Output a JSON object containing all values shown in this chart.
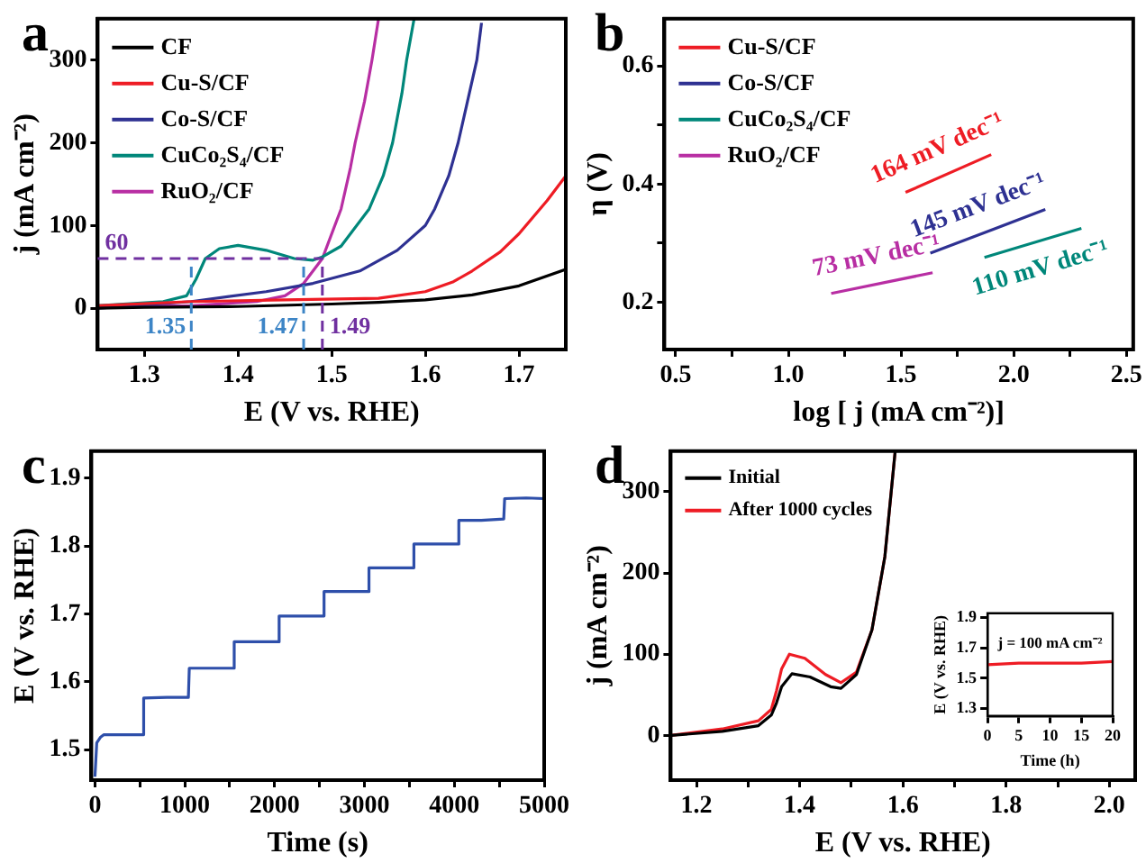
{
  "chart_data": [
    {
      "type": "line",
      "title": "a",
      "xlabel": "E (V vs. RHE)",
      "ylabel": "j (mA cm⁻²)",
      "xlim": [
        1.25,
        1.75
      ],
      "ylim": [
        -50,
        350
      ],
      "xticks": [
        1.3,
        1.4,
        1.5,
        1.6,
        1.7
      ],
      "yticks": [
        0,
        100,
        200,
        300
      ],
      "legend": "top left",
      "marker": "none",
      "line_style": "solid",
      "series": [
        {
          "name": "CF",
          "color": "#000000",
          "x": [
            1.25,
            1.3,
            1.4,
            1.5,
            1.55,
            1.6,
            1.65,
            1.7,
            1.75
          ],
          "values": [
            0,
            1,
            2,
            5,
            7,
            10,
            16,
            27,
            47
          ]
        },
        {
          "name": "Cu-S/CF",
          "color": "#ee1c24",
          "x": [
            1.25,
            1.35,
            1.45,
            1.55,
            1.6,
            1.63,
            1.65,
            1.68,
            1.7,
            1.73,
            1.75
          ],
          "values": [
            3,
            8,
            10,
            12,
            20,
            32,
            45,
            68,
            90,
            130,
            160
          ]
        },
        {
          "name": "Co-S/CF",
          "color": "#2e3192",
          "x": [
            1.25,
            1.3,
            1.35,
            1.43,
            1.48,
            1.53,
            1.57,
            1.6,
            1.61,
            1.625,
            1.635,
            1.645,
            1.655,
            1.66
          ],
          "values": [
            0,
            4,
            8,
            20,
            30,
            45,
            70,
            100,
            120,
            160,
            200,
            250,
            300,
            345
          ]
        },
        {
          "name": "CuCo₂S₄/CF",
          "color": "#00877a",
          "x": [
            1.25,
            1.32,
            1.345,
            1.355,
            1.365,
            1.38,
            1.4,
            1.43,
            1.46,
            1.48,
            1.49,
            1.51,
            1.54,
            1.555,
            1.565,
            1.575,
            1.58,
            1.588
          ],
          "values": [
            3,
            8,
            15,
            35,
            60,
            72,
            76,
            70,
            60,
            58,
            62,
            75,
            120,
            160,
            200,
            260,
            300,
            350
          ]
        },
        {
          "name": "RuO₂/CF",
          "color": "#b82ea3",
          "x": [
            1.25,
            1.35,
            1.42,
            1.45,
            1.47,
            1.49,
            1.51,
            1.52,
            1.525,
            1.535,
            1.543,
            1.55
          ],
          "values": [
            2,
            3,
            8,
            15,
            30,
            60,
            120,
            170,
            200,
            250,
            300,
            350
          ]
        }
      ],
      "ref_lines": [
        {
          "axis": "y",
          "value": 60,
          "label": "60",
          "color": "#7030a0",
          "line_style": "dashed"
        },
        {
          "axis": "x",
          "value": 1.35,
          "label": "1.35",
          "color": "#3d85c6",
          "line_style": "dashed"
        },
        {
          "axis": "x",
          "value": 1.47,
          "label": "1.47",
          "color": "#3d85c6",
          "line_style": "dashed"
        },
        {
          "axis": "x",
          "value": 1.49,
          "label": "1.49",
          "color": "#7030a0",
          "line_style": "dashed"
        }
      ]
    },
    {
      "type": "line",
      "title": "b",
      "xlabel": "log [ j (mA cm⁻²)]",
      "ylabel": "η (V)",
      "xlim": [
        0.45,
        2.53
      ],
      "ylim": [
        0.12,
        0.68
      ],
      "xticks": [
        0.5,
        {
          "value": 0.75,
          "label": null
        },
        {
          "value": 1,
          "label": "1.0"
        },
        {
          "value": 1.25,
          "label": null
        },
        1.5,
        {
          "value": 1.75,
          "label": null
        },
        {
          "value": 2,
          "label": "2.0"
        },
        {
          "value": 2.25,
          "label": null
        },
        2.5
      ],
      "yticks": [
        0.2,
        {
          "value": 0.3,
          "label": null
        },
        0.4,
        {
          "value": 0.5,
          "label": null
        },
        0.6
      ],
      "legend": "top left",
      "marker": "none",
      "line_style": "solid",
      "series": [
        {
          "name": "Cu-S/CF",
          "color": "#ee1c24",
          "x": [
            1.52,
            1.9
          ],
          "values": [
            0.386,
            0.45
          ]
        },
        {
          "name": "Co-S/CF",
          "color": "#2e3192",
          "x": [
            1.63,
            2.14
          ],
          "values": [
            0.283,
            0.357
          ]
        },
        {
          "name": "CuCo₂S₄/CF",
          "color": "#00877a",
          "x": [
            1.87,
            2.3
          ],
          "values": [
            0.276,
            0.325
          ]
        },
        {
          "name": "RuO₂/CF",
          "color": "#b82ea3",
          "x": [
            1.19,
            1.64
          ],
          "values": [
            0.215,
            0.25
          ]
        }
      ],
      "annotations": [
        "164 mV dec⁻¹",
        "145 mV dec⁻¹",
        "110 mV dec⁻¹",
        "73 mV dec⁻¹"
      ]
    },
    {
      "type": "line",
      "title": "c",
      "xlabel": "Time (s)",
      "ylabel": "E (V vs. RHE)",
      "xlim": [
        -40,
        5000
      ],
      "ylim": [
        1.455,
        1.94
      ],
      "xticks": [
        0,
        {
          "value": 500,
          "label": null
        },
        1000,
        {
          "value": 1500,
          "label": null
        },
        2000,
        {
          "value": 2500,
          "label": null
        },
        3000,
        {
          "value": 3500,
          "label": null
        },
        4000,
        {
          "value": 4500,
          "label": null
        },
        5000
      ],
      "yticks": [
        1.5,
        1.6,
        1.7,
        1.8,
        1.9
      ],
      "marker": "none",
      "line_style": "solid",
      "series": [
        {
          "color": "#2e4faa",
          "x": [
            0,
            20,
            60,
            100,
            300,
            530,
            540,
            545,
            800,
            1040,
            1050,
            1300,
            1540,
            1550,
            1800,
            2040,
            2050,
            2300,
            2540,
            2550,
            2800,
            3040,
            3050,
            3300,
            3540,
            3550,
            3800,
            4040,
            4050,
            4300,
            4550,
            4560,
            4800,
            5000
          ],
          "values": [
            1.46,
            1.51,
            1.518,
            1.522,
            1.522,
            1.522,
            1.576,
            1.576,
            1.577,
            1.577,
            1.62,
            1.62,
            1.62,
            1.659,
            1.659,
            1.659,
            1.697,
            1.697,
            1.697,
            1.733,
            1.733,
            1.733,
            1.768,
            1.768,
            1.768,
            1.803,
            1.803,
            1.803,
            1.838,
            1.838,
            1.84,
            1.87,
            1.871,
            1.87
          ]
        }
      ]
    },
    {
      "type": "line",
      "title": "d",
      "xlabel": "E (V vs. RHE)",
      "ylabel": "j (mA cm⁻²)",
      "xlim": [
        1.15,
        2.05
      ],
      "ylim": [
        -55,
        350
      ],
      "xticks": [
        1.2,
        {
          "value": 1.3,
          "label": null
        },
        1.4,
        {
          "value": 1.5,
          "label": null
        },
        1.6,
        {
          "value": 1.7,
          "label": null
        },
        1.8,
        {
          "value": 1.9,
          "label": null
        },
        {
          "value": 2,
          "label": "2.0"
        }
      ],
      "yticks": [
        0,
        100,
        200,
        300
      ],
      "legend": "top left",
      "marker": "none",
      "line_style": "solid",
      "series": [
        {
          "name": "Initial",
          "color": "#000000",
          "x": [
            1.15,
            1.25,
            1.32,
            1.345,
            1.355,
            1.365,
            1.385,
            1.42,
            1.46,
            1.48,
            1.51,
            1.54,
            1.565,
            1.585
          ],
          "values": [
            0,
            5,
            12,
            25,
            40,
            60,
            76,
            72,
            60,
            58,
            75,
            130,
            220,
            350
          ]
        },
        {
          "name": "After 1000 cycles",
          "color": "#ee1c24",
          "x": [
            1.15,
            1.25,
            1.32,
            1.345,
            1.355,
            1.365,
            1.38,
            1.41,
            1.45,
            1.48,
            1.51,
            1.54,
            1.565,
            1.585
          ],
          "values": [
            0,
            8,
            18,
            32,
            55,
            82,
            100,
            95,
            75,
            65,
            78,
            130,
            220,
            350
          ]
        }
      ]
    },
    {
      "type": "line",
      "xlabel": "Time (h)",
      "ylabel": "E (V vs. RHE)",
      "xlim": [
        0,
        20
      ],
      "ylim": [
        1.25,
        1.93
      ],
      "xticks": [
        0,
        5,
        10,
        15,
        20
      ],
      "yticks": [
        1.3,
        1.5,
        1.7,
        1.9
      ],
      "marker": "none",
      "line_style": "solid",
      "series": [
        {
          "color": "#ee1c24",
          "x": [
            0,
            5,
            10,
            15,
            20
          ],
          "values": [
            1.59,
            1.6,
            1.6,
            1.6,
            1.61
          ]
        }
      ],
      "annotations": [
        "j = 100 mA cm⁻²"
      ]
    }
  ]
}
